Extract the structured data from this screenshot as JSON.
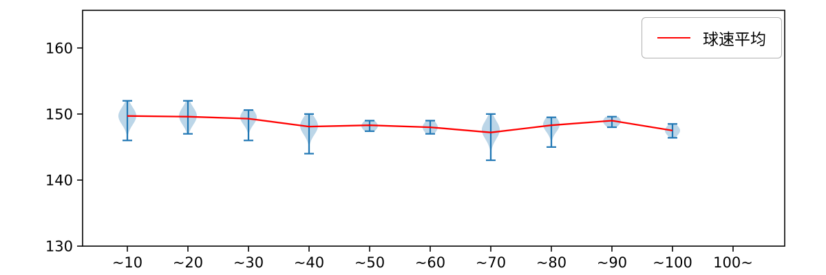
{
  "chart_data": {
    "type": "violin",
    "title": "",
    "xlabel": "",
    "ylabel": "",
    "ylim": [
      130,
      165.7
    ],
    "yticks": [
      130,
      140,
      150,
      160
    ],
    "categories": [
      "~10",
      "~20",
      "~30",
      "~40",
      "~50",
      "~60",
      "~70",
      "~80",
      "~90",
      "~100",
      "100~"
    ],
    "grid": false,
    "legend": {
      "position": "upper right",
      "entries": [
        {
          "label": "球速平均",
          "color": "#ff0000",
          "type": "line"
        }
      ]
    },
    "series": [
      {
        "name": "球速平均",
        "type": "line",
        "color": "#ff0000",
        "values": [
          149.7,
          149.6,
          149.3,
          148.1,
          148.3,
          148.0,
          147.2,
          148.3,
          149.0,
          147.5,
          null
        ]
      }
    ],
    "violins": [
      {
        "category": "~10",
        "min": 146.0,
        "max": 152.0,
        "mean": 149.7,
        "mode": 149.7,
        "spread": 1.3,
        "width": 13
      },
      {
        "category": "~20",
        "min": 147.0,
        "max": 152.0,
        "mean": 149.6,
        "mode": 149.7,
        "spread": 1.3,
        "width": 13
      },
      {
        "category": "~30",
        "min": 146.0,
        "max": 150.6,
        "mean": 149.3,
        "mode": 149.5,
        "spread": 1.1,
        "width": 12
      },
      {
        "category": "~40",
        "min": 144.0,
        "max": 150.0,
        "mean": 148.1,
        "mode": 148.2,
        "spread": 1.3,
        "width": 13
      },
      {
        "category": "~50",
        "min": 147.4,
        "max": 149.0,
        "mean": 148.3,
        "mode": 148.2,
        "spread": 0.8,
        "width": 12
      },
      {
        "category": "~60",
        "min": 147.0,
        "max": 149.0,
        "mean": 148.0,
        "mode": 148.0,
        "spread": 0.9,
        "width": 11
      },
      {
        "category": "~70",
        "min": 143.0,
        "max": 150.0,
        "mean": 147.2,
        "mode": 147.6,
        "spread": 1.4,
        "width": 13
      },
      {
        "category": "~80",
        "min": 145.0,
        "max": 149.5,
        "mean": 148.3,
        "mode": 148.4,
        "spread": 1.1,
        "width": 12
      },
      {
        "category": "~90",
        "min": 148.0,
        "max": 149.6,
        "mean": 149.0,
        "mode": 148.9,
        "spread": 0.8,
        "width": 13
      },
      {
        "category": "~100",
        "min": 146.4,
        "max": 148.5,
        "mean": 147.5,
        "mode": 147.5,
        "spread": 0.8,
        "width": 11
      }
    ],
    "colors": {
      "violin_fill": "#bcd6e8",
      "violin_line": "#2077b4",
      "mean_line": "#ff0000",
      "axis": "#000000"
    }
  }
}
